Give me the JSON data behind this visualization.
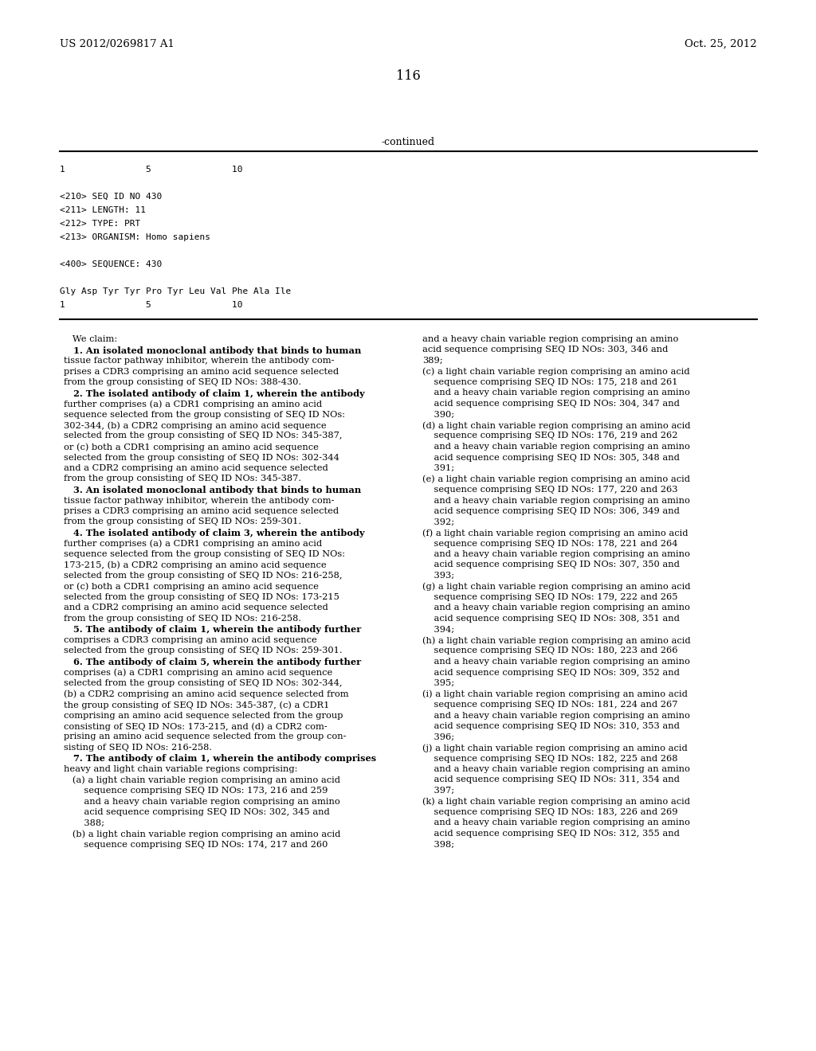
{
  "background_color": "#ffffff",
  "header_left": "US 2012/0269817 A1",
  "header_right": "Oct. 25, 2012",
  "page_number": "116",
  "continued_label": "-continued",
  "sequence_block": {
    "ruler_top": "1               5               10",
    "seq_id": "<210> SEQ ID NO 430",
    "length": "<211> LENGTH: 11",
    "type": "<212> TYPE: PRT",
    "organism": "<213> ORGANISM: Homo sapiens",
    "seq400": "<400> SEQUENCE: 430",
    "sequence": "Gly Asp Tyr Tyr Pro Tyr Leu Val Phe Ala Ile",
    "seq_ruler": "1               5               10"
  },
  "left_column": [
    [
      "normal",
      "   We claim:"
    ],
    [
      "bold_num",
      "   1. ",
      "An isolated monoclonal antibody that binds to human"
    ],
    [
      "normal",
      "tissue factor pathway inhibitor, wherein the antibody com-"
    ],
    [
      "normal",
      "prises a CDR3 comprising an amino acid sequence selected"
    ],
    [
      "normal",
      "from the group consisting of SEQ ID NOs: 388-430."
    ],
    [
      "bold_num",
      "   2. ",
      "The isolated antibody of claim "
    ],
    [
      "normal",
      "further comprises (a) a CDR1 comprising an amino acid"
    ],
    [
      "normal",
      "sequence selected from the group consisting of SEQ ID NOs:"
    ],
    [
      "normal",
      "302-344, (b) a CDR2 comprising an amino acid sequence"
    ],
    [
      "normal",
      "selected from the group consisting of SEQ ID NOs: 345-387,"
    ],
    [
      "normal",
      "or (c) both a CDR1 comprising an amino acid sequence"
    ],
    [
      "normal",
      "selected from the group consisting of SEQ ID NOs: 302-344"
    ],
    [
      "normal",
      "and a CDR2 comprising an amino acid sequence selected"
    ],
    [
      "normal",
      "from the group consisting of SEQ ID NOs: 345-387."
    ],
    [
      "bold_num",
      "   3. ",
      "An isolated monoclonal antibody that binds to human"
    ],
    [
      "normal",
      "tissue factor pathway inhibitor, wherein the antibody com-"
    ],
    [
      "normal",
      "prises a CDR3 comprising an amino acid sequence selected"
    ],
    [
      "normal",
      "from the group consisting of SEQ ID NOs: 259-301."
    ],
    [
      "bold_num",
      "   4. ",
      "The isolated antibody of claim "
    ],
    [
      "normal",
      "further comprises (a) a CDR1 comprising an amino acid"
    ],
    [
      "normal",
      "sequence selected from the group consisting of SEQ ID NOs:"
    ],
    [
      "normal",
      "173-215, (b) a CDR2 comprising an amino acid sequence"
    ],
    [
      "normal",
      "selected from the group consisting of SEQ ID NOs: 216-258,"
    ],
    [
      "normal",
      "or (c) both a CDR1 comprising an amino acid sequence"
    ],
    [
      "normal",
      "selected from the group consisting of SEQ ID NOs: 173-215"
    ],
    [
      "normal",
      "and a CDR2 comprising an amino acid sequence selected"
    ],
    [
      "normal",
      "from the group consisting of SEQ ID NOs: 216-258."
    ],
    [
      "bold_num",
      "   5. ",
      "The antibody of claim "
    ],
    [
      "normal",
      "comprises a CDR3 comprising an amino acid sequence"
    ],
    [
      "normal",
      "selected from the group consisting of SEQ ID NOs: 259-301."
    ],
    [
      "bold_num",
      "   6. ",
      "The antibody of claim "
    ],
    [
      "normal",
      "comprises (a) a CDR1 comprising an amino acid sequence"
    ],
    [
      "normal",
      "selected from the group consisting of SEQ ID NOs: 302-344,"
    ],
    [
      "normal",
      "(b) a CDR2 comprising an amino acid sequence selected from"
    ],
    [
      "normal",
      "the group consisting of SEQ ID NOs: 345-387, (c) a CDR1"
    ],
    [
      "normal",
      "comprising an amino acid sequence selected from the group"
    ],
    [
      "normal",
      "consisting of SEQ ID NOs: 173-215, and (d) a CDR2 com-"
    ],
    [
      "normal",
      "prising an amino acid sequence selected from the group con-"
    ],
    [
      "normal",
      "sisting of SEQ ID NOs: 216-258."
    ],
    [
      "bold_num",
      "   7. ",
      "The antibody of claim "
    ],
    [
      "normal",
      "heavy and light chain variable regions comprising:"
    ],
    [
      "normal",
      "   (a) a light chain variable region comprising an amino acid"
    ],
    [
      "normal",
      "       sequence comprising SEQ ID NOs: 173, 216 and 259"
    ],
    [
      "normal",
      "       and a heavy chain variable region comprising an amino"
    ],
    [
      "normal",
      "       acid sequence comprising SEQ ID NOs: 302, 345 and"
    ],
    [
      "normal",
      "       388;"
    ],
    [
      "normal",
      "   (b) a light chain variable region comprising an amino acid"
    ],
    [
      "normal",
      "       sequence comprising SEQ ID NOs: 174, 217 and 260"
    ]
  ],
  "right_column": [
    "and a heavy chain variable region comprising an amino",
    "acid sequence comprising SEQ ID NOs: 303, 346 and",
    "389;",
    "(c) a light chain variable region comprising an amino acid",
    "    sequence comprising SEQ ID NOs: 175, 218 and 261",
    "    and a heavy chain variable region comprising an amino",
    "    acid sequence comprising SEQ ID NOs: 304, 347 and",
    "    390;",
    "(d) a light chain variable region comprising an amino acid",
    "    sequence comprising SEQ ID NOs: 176, 219 and 262",
    "    and a heavy chain variable region comprising an amino",
    "    acid sequence comprising SEQ ID NOs: 305, 348 and",
    "    391;",
    "(e) a light chain variable region comprising an amino acid",
    "    sequence comprising SEQ ID NOs: 177, 220 and 263",
    "    and a heavy chain variable region comprising an amino",
    "    acid sequence comprising SEQ ID NOs: 306, 349 and",
    "    392;",
    "(f) a light chain variable region comprising an amino acid",
    "    sequence comprising SEQ ID NOs: 178, 221 and 264",
    "    and a heavy chain variable region comprising an amino",
    "    acid sequence comprising SEQ ID NOs: 307, 350 and",
    "    393;",
    "(g) a light chain variable region comprising an amino acid",
    "    sequence comprising SEQ ID NOs: 179, 222 and 265",
    "    and a heavy chain variable region comprising an amino",
    "    acid sequence comprising SEQ ID NOs: 308, 351 and",
    "    394;",
    "(h) a light chain variable region comprising an amino acid",
    "    sequence comprising SEQ ID NOs: 180, 223 and 266",
    "    and a heavy chain variable region comprising an amino",
    "    acid sequence comprising SEQ ID NOs: 309, 352 and",
    "    395;",
    "(i) a light chain variable region comprising an amino acid",
    "    sequence comprising SEQ ID NOs: 181, 224 and 267",
    "    and a heavy chain variable region comprising an amino",
    "    acid sequence comprising SEQ ID NOs: 310, 353 and",
    "    396;",
    "(j) a light chain variable region comprising an amino acid",
    "    sequence comprising SEQ ID NOs: 182, 225 and 268",
    "    and a heavy chain variable region comprising an amino",
    "    acid sequence comprising SEQ ID NOs: 311, 354 and",
    "    397;",
    "(k) a light chain variable region comprising an amino acid",
    "    sequence comprising SEQ ID NOs: 183, 226 and 269",
    "    and a heavy chain variable region comprising an amino",
    "    acid sequence comprising SEQ ID NOs: 312, 355 and",
    "    398;"
  ],
  "fonts": {
    "header_size": 9.5,
    "page_num_size": 11.5,
    "continued_size": 9.0,
    "sequence_mono_size": 8.0,
    "body_size": 8.2
  }
}
